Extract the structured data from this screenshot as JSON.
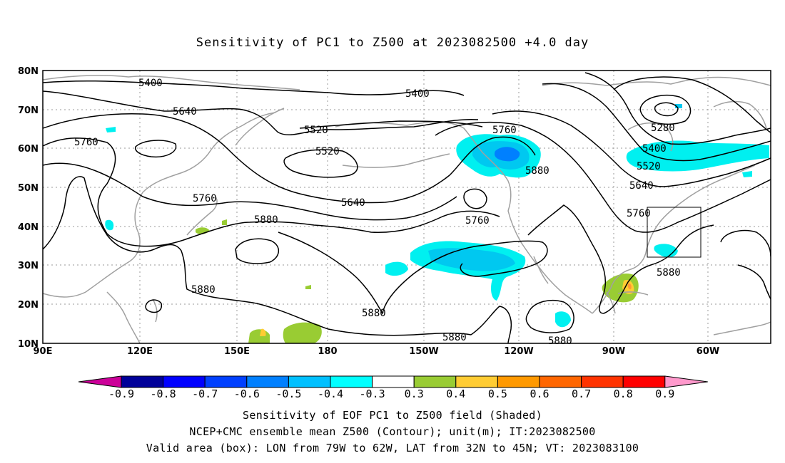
{
  "title": "Sensitivity of PC1 to Z500 at 2023082500 +4.0 day",
  "map": {
    "lat_labels": [
      "80N",
      "70N",
      "60N",
      "50N",
      "40N",
      "30N",
      "20N",
      "10N"
    ],
    "lon_labels": [
      "90E",
      "120E",
      "150E",
      "180",
      "150W",
      "120W",
      "90W",
      "60W"
    ],
    "contour_labels": [
      "5400",
      "5400",
      "5640",
      "5520",
      "5520",
      "5760",
      "5760",
      "5640",
      "5760",
      "5880",
      "5880",
      "5760",
      "5880",
      "5880",
      "5880",
      "5880",
      "5280",
      "5400",
      "5520",
      "5640",
      "5760",
      "5880"
    ],
    "box": {
      "lon_west": "79W",
      "lon_east": "62W",
      "lat_south": "32N",
      "lat_north": "45N"
    },
    "colors": {
      "coast": "#a0a0a0",
      "contour": "#000000",
      "cyan_light": "#00f0f0",
      "cyan_mid": "#00c8f0",
      "blue_mid": "#0080ff",
      "green": "#99cc33",
      "yellow": "#ffcc33",
      "orange": "#ff9933"
    }
  },
  "colorbar": {
    "ticks": [
      "-0.9",
      "-0.8",
      "-0.7",
      "-0.6",
      "-0.5",
      "-0.4",
      "-0.3",
      "0.3",
      "0.4",
      "0.5",
      "0.6",
      "0.7",
      "0.8",
      "0.9"
    ],
    "colors": [
      "#000099",
      "#0000ff",
      "#0040ff",
      "#0080ff",
      "#00c0ff",
      "#00ffff",
      "#ffffff",
      "#99cc33",
      "#ffcc33",
      "#ff9900",
      "#ff6600",
      "#ff3300",
      "#ff0000"
    ],
    "left_end_color": "#cc0099",
    "right_end_color": "#ff99cc"
  },
  "captions": {
    "line1": "Sensitivity of EOF PC1 to Z500 field (Shaded)",
    "line2": "NCEP+CMC ensemble mean Z500 (Contour); unit(m); IT:2023082500",
    "line3": "Valid area (box): LON from 79W to 62W, LAT from 32N to 45N; VT: 2023083100"
  }
}
